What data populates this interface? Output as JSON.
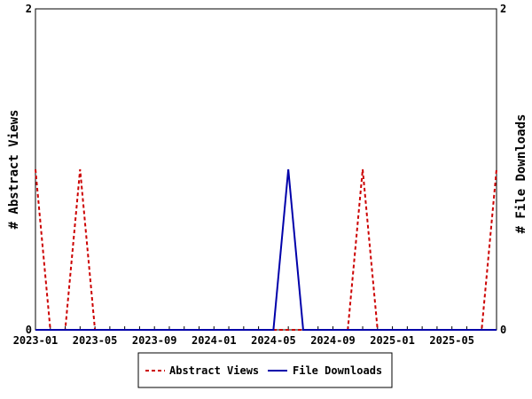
{
  "chart_data": {
    "type": "line",
    "x": [
      "2023-01",
      "2023-02",
      "2023-03",
      "2023-04",
      "2023-05",
      "2023-06",
      "2023-07",
      "2023-08",
      "2023-09",
      "2023-10",
      "2023-11",
      "2023-12",
      "2024-01",
      "2024-02",
      "2024-03",
      "2024-04",
      "2024-05",
      "2024-06",
      "2024-07",
      "2024-08",
      "2024-09",
      "2024-10",
      "2024-11",
      "2024-12",
      "2025-01",
      "2025-02",
      "2025-03",
      "2025-04",
      "2025-05",
      "2025-06",
      "2025-07",
      "2025-08"
    ],
    "x_tick_labels": [
      "2023-01",
      "2023-05",
      "2023-09",
      "2024-01",
      "2024-05",
      "2024-09",
      "2025-01",
      "2025-05"
    ],
    "series": [
      {
        "name": "Abstract Views",
        "axis": "left",
        "color": "#cc0000",
        "style": "dashed",
        "values": [
          1,
          0,
          0,
          1,
          0,
          0,
          0,
          0,
          0,
          0,
          0,
          0,
          0,
          0,
          0,
          0,
          0,
          0,
          0,
          0,
          0,
          0,
          1,
          0,
          0,
          0,
          0,
          0,
          0,
          0,
          0,
          1
        ]
      },
      {
        "name": "File Downloads",
        "axis": "right",
        "color": "#0000aa",
        "style": "solid",
        "values": [
          0,
          0,
          0,
          0,
          0,
          0,
          0,
          0,
          0,
          0,
          0,
          0,
          0,
          0,
          0,
          0,
          0,
          1,
          0,
          0,
          0,
          0,
          0,
          0,
          0,
          0,
          0,
          0,
          0,
          0,
          0,
          0
        ]
      }
    ],
    "ylabel_left": "# Abstract Views",
    "ylabel_right": "# File Downloads",
    "ylim_left": [
      0,
      2
    ],
    "ylim_right": [
      0,
      2
    ],
    "y_tick_labels_left": [
      "0",
      "2"
    ],
    "y_tick_labels_right": [
      "0",
      "2"
    ],
    "grid": false,
    "legend_position": "bottom"
  }
}
